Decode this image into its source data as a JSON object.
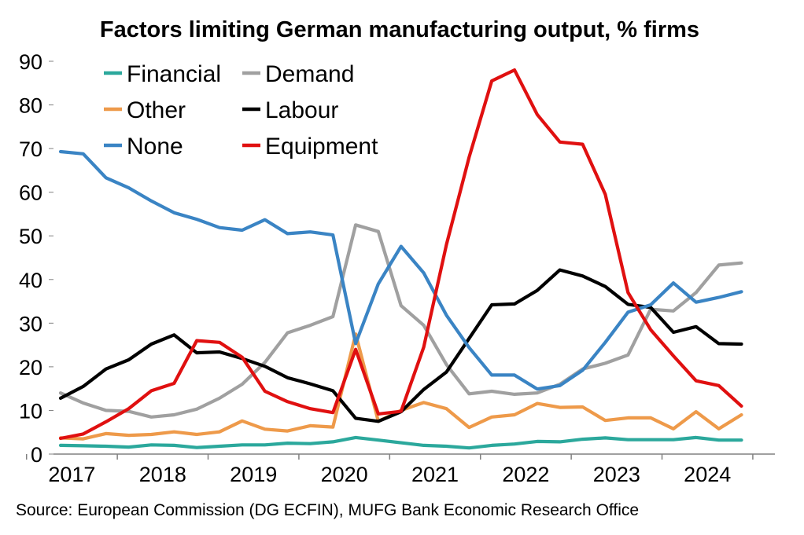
{
  "chart_data": {
    "type": "line",
    "title": "Factors limiting German manufacturing output, % firms",
    "source": "Source: European Commission (DG ECFIN), MUFG Bank Economic Research Office",
    "xlabel": "",
    "ylabel": "",
    "ylim": [
      0,
      90
    ],
    "yticks": [
      "0",
      "10",
      "20",
      "30",
      "40",
      "50",
      "60",
      "70",
      "80",
      "90"
    ],
    "year_labels": [
      "2017",
      "2018",
      "2019",
      "2020",
      "2021",
      "2022",
      "2023",
      "2024"
    ],
    "x": [
      "2016 Q4",
      "2017 Q1",
      "2017 Q2",
      "2017 Q3",
      "2017 Q4",
      "2018 Q1",
      "2018 Q2",
      "2018 Q3",
      "2018 Q4",
      "2019 Q1",
      "2019 Q2",
      "2019 Q3",
      "2019 Q4",
      "2020 Q1",
      "2020 Q2",
      "2020 Q3",
      "2020 Q4",
      "2021 Q1",
      "2021 Q2",
      "2021 Q3",
      "2021 Q4",
      "2022 Q1",
      "2022 Q2",
      "2022 Q3",
      "2022 Q4",
      "2023 Q1",
      "2023 Q2",
      "2023 Q3",
      "2023 Q4",
      "2024 Q1",
      "2024 Q2"
    ],
    "legend_placement": "top-left",
    "grid": false,
    "series": [
      {
        "name": "Financial",
        "color": "#2ba89c",
        "values": [
          2,
          1.9,
          1.8,
          1.6,
          2.1,
          2,
          1.5,
          1.8,
          2.1,
          2.1,
          2.5,
          2.4,
          2.8,
          3.8,
          3.2,
          2.6,
          2,
          1.8,
          1.4,
          2,
          2.3,
          2.9,
          2.8,
          3.4,
          3.7,
          3.3,
          3.3,
          3.3,
          3.8,
          3.2,
          3.2
        ]
      },
      {
        "name": "Demand",
        "color": "#a0a0a0",
        "values": [
          14,
          11.7,
          10,
          9.8,
          8.5,
          9,
          10.3,
          12.8,
          16,
          21,
          27.8,
          29.5,
          31.5,
          52.5,
          51,
          34,
          29.5,
          20.5,
          13.8,
          14.4,
          13.7,
          14,
          16,
          19.5,
          20.8,
          22.7,
          33.2,
          32.8,
          37,
          43.3,
          43.8
        ]
      },
      {
        "name": "Other",
        "color": "#ee9a4a",
        "values": [
          3.7,
          3.5,
          4.7,
          4.3,
          4.5,
          5.1,
          4.5,
          5.1,
          7.6,
          5.7,
          5.3,
          6.5,
          6.2,
          27.5,
          7.5,
          10,
          11.8,
          10.4,
          6.1,
          8.5,
          9,
          11.6,
          10.7,
          10.8,
          7.7,
          8.3,
          8.3,
          5.8,
          9.7,
          5.8,
          9
        ]
      },
      {
        "name": "Labour",
        "color": "#000000",
        "values": [
          12.8,
          15.5,
          19.5,
          21.6,
          25.2,
          27.3,
          23.2,
          23.4,
          21.9,
          20.1,
          17.5,
          16.1,
          14.5,
          8.2,
          7.5,
          9.7,
          14.8,
          18.8,
          26.5,
          34.2,
          34.4,
          37.5,
          42.2,
          40.8,
          38.4,
          34.3,
          33.6,
          27.9,
          29.2,
          25.3,
          25.2
        ]
      },
      {
        "name": "None",
        "color": "#3a84c4",
        "values": [
          69.3,
          68.8,
          63.3,
          61,
          58,
          55.3,
          53.8,
          51.9,
          51.3,
          53.7,
          50.5,
          50.9,
          50.2,
          25.3,
          39,
          47.6,
          41.5,
          31.8,
          24.4,
          18.1,
          18.1,
          14.9,
          15.7,
          19.2,
          25.6,
          32.5,
          34.2,
          39.2,
          34.8,
          35.9,
          37.2
        ]
      },
      {
        "name": "Equipment",
        "color": "#e01010",
        "values": [
          3.6,
          4.6,
          7.4,
          10.4,
          14.5,
          16.2,
          26,
          25.6,
          22.2,
          14.4,
          12,
          10.4,
          9.5,
          24,
          9.2,
          9.8,
          24.5,
          48,
          68,
          85.5,
          88,
          77.8,
          71.5,
          71,
          59.5,
          37,
          28.5,
          22.5,
          16.8,
          15.7,
          11
        ]
      }
    ]
  }
}
